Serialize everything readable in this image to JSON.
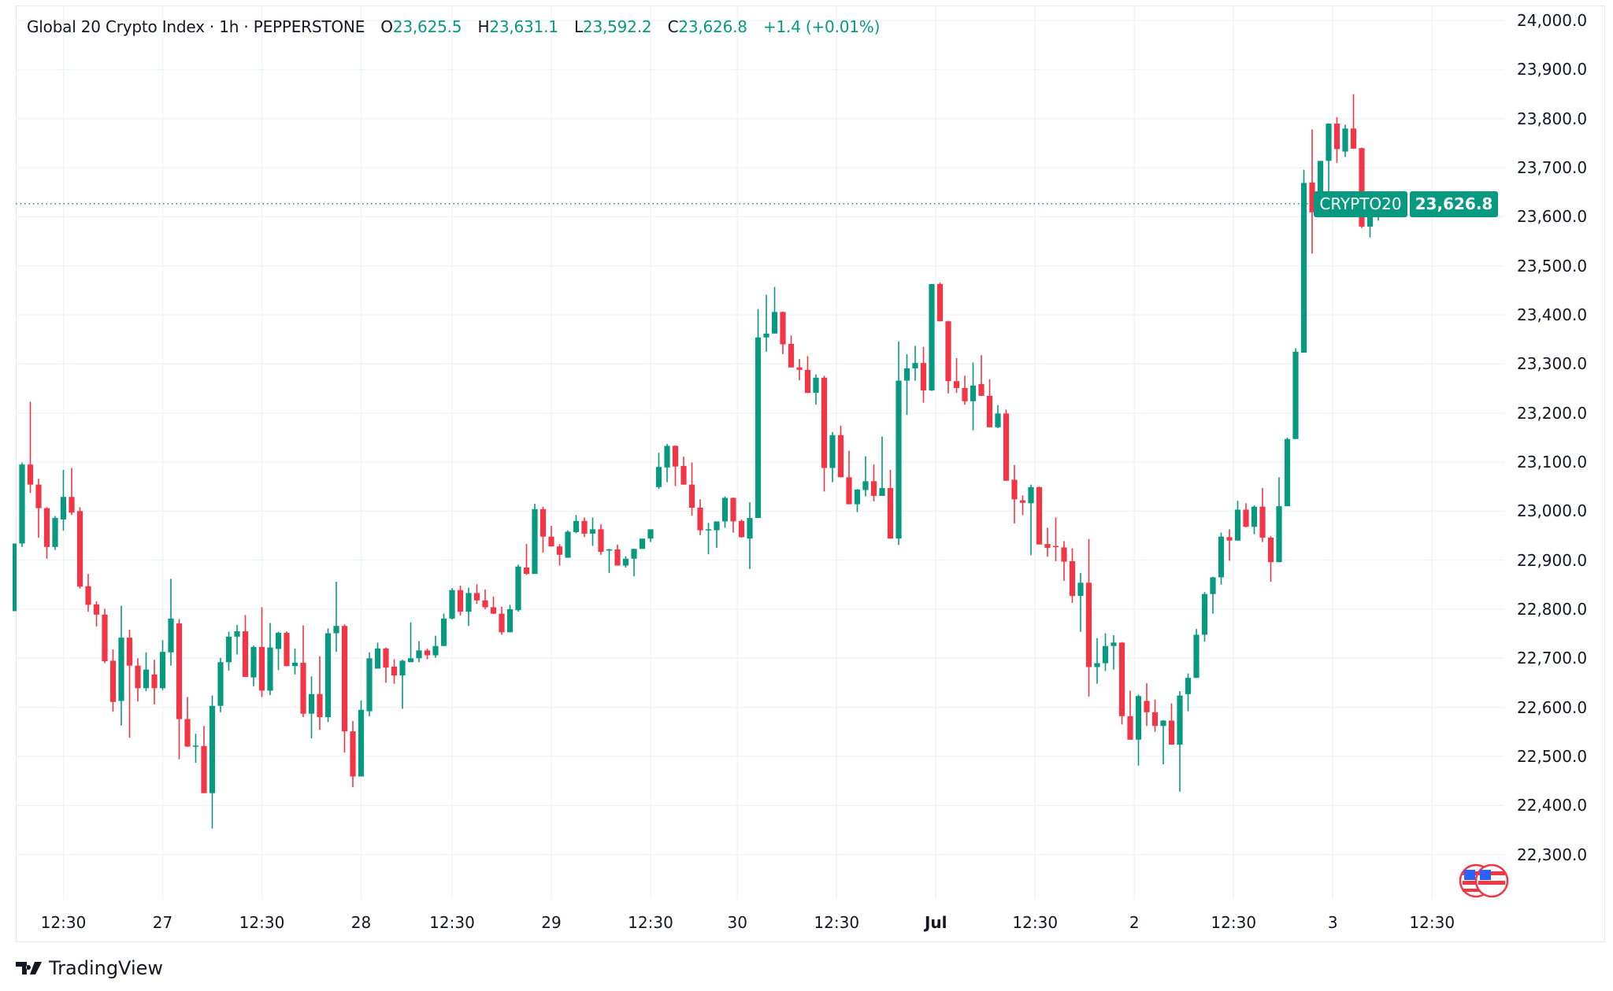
{
  "header": {
    "symbol": "Global 20 Crypto Index · 1h · PEPPERSTONE",
    "open_label": "O",
    "open": "23,625.5",
    "high_label": "H",
    "high": "23,631.1",
    "low_label": "L",
    "low": "23,592.2",
    "close_label": "C",
    "close": "23,626.8",
    "change": "+1.4 (+0.01%)"
  },
  "price_tag": {
    "name": "CRYPTO20",
    "price": "23,626.8"
  },
  "branding": {
    "name": "TradingView"
  },
  "colors": {
    "up": "#089981",
    "down": "#f23645",
    "grid": "#f0f3fa",
    "price_line": "#089981"
  },
  "icons": {
    "events": "us-flag-events-icon",
    "logo": "tradingview-logo-icon"
  },
  "chart_data": {
    "type": "candlestick",
    "title": "Global 20 Crypto Index · 1h · PEPPERSTONE",
    "interval": "1h",
    "ylim": [
      22200,
      24050
    ],
    "grid": true,
    "y_ticks": [
      "24,000.0",
      "23,900.0",
      "23,800.0",
      "23,700.0",
      "23,600.0",
      "23,500.0",
      "23,400.0",
      "23,300.0",
      "23,200.0",
      "23,100.0",
      "23,000.0",
      "22,900.0",
      "22,800.0",
      "22,700.0",
      "22,600.0",
      "22,500.0",
      "22,400.0",
      "22,300.0"
    ],
    "y_tick_values": [
      24000,
      23900,
      23800,
      23700,
      23600,
      23500,
      23400,
      23300,
      23200,
      23100,
      23000,
      22900,
      22800,
      22700,
      22600,
      22500,
      22400,
      22300
    ],
    "x_ticks": [
      {
        "label": "12:30",
        "candle": 6
      },
      {
        "label": "27",
        "candle": 18
      },
      {
        "label": "12:30",
        "candle": 30
      },
      {
        "label": "28",
        "candle": 42
      },
      {
        "label": "12:30",
        "candle": 53
      },
      {
        "label": "29",
        "candle": 65
      },
      {
        "label": "12:30",
        "candle": 77
      },
      {
        "label": "30",
        "candle": 87.5
      },
      {
        "label": "12:30",
        "candle": 99.5
      },
      {
        "label": "Jul",
        "candle": 111.5,
        "bold": true
      },
      {
        "label": "12:30",
        "candle": 123.5
      },
      {
        "label": "2",
        "candle": 135.5
      },
      {
        "label": "12:30",
        "candle": 147.5
      },
      {
        "label": "3",
        "candle": 159.5
      },
      {
        "label": "12:30",
        "candle": 171.5
      }
    ],
    "last_price": 23626.8,
    "ohlc": [
      [
        22796,
        22934,
        22796,
        22934
      ],
      [
        22934,
        23099,
        22927,
        23095
      ],
      [
        23095,
        23223,
        23037,
        23054
      ],
      [
        23054,
        23066,
        22946,
        23006
      ],
      [
        23006,
        23008,
        22903,
        22927
      ],
      [
        22927,
        22990,
        22921,
        22986
      ],
      [
        22983,
        23084,
        22960,
        23029
      ],
      [
        23029,
        23088,
        22992,
        22997
      ],
      [
        23000,
        23008,
        22842,
        22846
      ],
      [
        22847,
        22872,
        22795,
        22809
      ],
      [
        22810,
        22816,
        22765,
        22789
      ],
      [
        22789,
        22801,
        22690,
        22694
      ],
      [
        22695,
        22718,
        22591,
        22611
      ],
      [
        22613,
        22807,
        22563,
        22742
      ],
      [
        22742,
        22758,
        22538,
        22685
      ],
      [
        22685,
        22700,
        22612,
        22639
      ],
      [
        22639,
        22712,
        22633,
        22677
      ],
      [
        22667,
        22697,
        22606,
        22639
      ],
      [
        22639,
        22737,
        22635,
        22713
      ],
      [
        22712,
        22862,
        22685,
        22781
      ],
      [
        22771,
        22780,
        22494,
        22576
      ],
      [
        22576,
        22621,
        22519,
        22520
      ],
      [
        22520,
        22546,
        22487,
        22522
      ],
      [
        22521,
        22562,
        22425,
        22425
      ],
      [
        22425,
        22624,
        22353,
        22603
      ],
      [
        22603,
        22701,
        22590,
        22692
      ],
      [
        22692,
        22754,
        22675,
        22744
      ],
      [
        22744,
        22768,
        22708,
        22755
      ],
      [
        22755,
        22788,
        22662,
        22662
      ],
      [
        22661,
        22726,
        22643,
        22723
      ],
      [
        22723,
        22804,
        22621,
        22634
      ],
      [
        22634,
        22772,
        22625,
        22722
      ],
      [
        22719,
        22754,
        22676,
        22752
      ],
      [
        22752,
        22755,
        22684,
        22684
      ],
      [
        22684,
        22720,
        22667,
        22691
      ],
      [
        22691,
        22767,
        22580,
        22587
      ],
      [
        22587,
        22663,
        22537,
        22627
      ],
      [
        22627,
        22704,
        22554,
        22580
      ],
      [
        22580,
        22761,
        22570,
        22751
      ],
      [
        22751,
        22856,
        22713,
        22766
      ],
      [
        22766,
        22769,
        22508,
        22551
      ],
      [
        22551,
        22572,
        22437,
        22459
      ],
      [
        22459,
        22614,
        22459,
        22595
      ],
      [
        22592,
        22712,
        22582,
        22700
      ],
      [
        22679,
        22732,
        22679,
        22720
      ],
      [
        22720,
        22722,
        22650,
        22681
      ],
      [
        22683,
        22698,
        22648,
        22665
      ],
      [
        22665,
        22697,
        22597,
        22695
      ],
      [
        22692,
        22773,
        22692,
        22700
      ],
      [
        22700,
        22735,
        22692,
        22716
      ],
      [
        22716,
        22720,
        22698,
        22706
      ],
      [
        22706,
        22746,
        22701,
        22725
      ],
      [
        22725,
        22791,
        22725,
        22781
      ],
      [
        22781,
        22843,
        22779,
        22839
      ],
      [
        22839,
        22848,
        22787,
        22795
      ],
      [
        22795,
        22844,
        22766,
        22833
      ],
      [
        22833,
        22851,
        22811,
        22818
      ],
      [
        22818,
        22840,
        22800,
        22804
      ],
      [
        22804,
        22826,
        22790,
        22791
      ],
      [
        22791,
        22805,
        22748,
        22753
      ],
      [
        22753,
        22809,
        22753,
        22800
      ],
      [
        22798,
        22891,
        22795,
        22887
      ],
      [
        22885,
        22933,
        22870,
        22872
      ],
      [
        22872,
        23015,
        22872,
        23004
      ],
      [
        23004,
        23009,
        22915,
        22948
      ],
      [
        22948,
        22970,
        22928,
        22928
      ],
      [
        22928,
        22933,
        22889,
        22911
      ],
      [
        22905,
        22961,
        22905,
        22958
      ],
      [
        22957,
        22992,
        22955,
        22980
      ],
      [
        22980,
        22987,
        22947,
        22954
      ],
      [
        22954,
        22987,
        22929,
        22963
      ],
      [
        22963,
        22973,
        22911,
        22917
      ],
      [
        22920,
        22923,
        22874,
        22922
      ],
      [
        22922,
        22932,
        22889,
        22889
      ],
      [
        22889,
        22908,
        22885,
        22903
      ],
      [
        22903,
        22923,
        22867,
        22923
      ],
      [
        22923,
        22944,
        22923,
        22944
      ],
      [
        22944,
        22963,
        22937,
        22963
      ],
      [
        23049,
        23119,
        23045,
        23090
      ],
      [
        23089,
        23137,
        23059,
        23133
      ],
      [
        23133,
        23134,
        23051,
        23091
      ],
      [
        23092,
        23111,
        23054,
        23054
      ],
      [
        23054,
        23099,
        22991,
        23007
      ],
      [
        23007,
        23024,
        22951,
        22961
      ],
      [
        22962,
        22976,
        22912,
        22963
      ],
      [
        22961,
        22979,
        22925,
        22979
      ],
      [
        22979,
        23030,
        22966,
        23027
      ],
      [
        23027,
        23028,
        22956,
        22979
      ],
      [
        22980,
        22983,
        22946,
        22947
      ],
      [
        22944,
        23018,
        22882,
        22986
      ],
      [
        22986,
        23412,
        22986,
        23354
      ],
      [
        23354,
        23441,
        23325,
        23362
      ],
      [
        23362,
        23457,
        23362,
        23406
      ],
      [
        23406,
        23407,
        23320,
        23340
      ],
      [
        23341,
        23358,
        23293,
        23293
      ],
      [
        23293,
        23310,
        23267,
        23288
      ],
      [
        23288,
        23316,
        23241,
        23241
      ],
      [
        23241,
        23279,
        23217,
        23272
      ],
      [
        23272,
        23276,
        23040,
        23088
      ],
      [
        23088,
        23161,
        23059,
        23155
      ],
      [
        23155,
        23174,
        23069,
        23069
      ],
      [
        23069,
        23123,
        23014,
        23014
      ],
      [
        23014,
        23045,
        22998,
        23044
      ],
      [
        23043,
        23112,
        23030,
        23061
      ],
      [
        23061,
        23095,
        23020,
        23031
      ],
      [
        23031,
        23152,
        23031,
        23047
      ],
      [
        23047,
        23084,
        22944,
        22944
      ],
      [
        22944,
        23346,
        22931,
        23266
      ],
      [
        23266,
        23320,
        23196,
        23291
      ],
      [
        23291,
        23337,
        23266,
        23302
      ],
      [
        23302,
        23335,
        23221,
        23246
      ],
      [
        23246,
        23463,
        23245,
        23463
      ],
      [
        23463,
        23466,
        23387,
        23387
      ],
      [
        23387,
        23388,
        23240,
        23265
      ],
      [
        23265,
        23312,
        23241,
        23251
      ],
      [
        23251,
        23276,
        23217,
        23224
      ],
      [
        23224,
        23303,
        23165,
        23256
      ],
      [
        23259,
        23318,
        23235,
        23235
      ],
      [
        23235,
        23269,
        23171,
        23171
      ],
      [
        23171,
        23216,
        23169,
        23199
      ],
      [
        23199,
        23207,
        23062,
        23062
      ],
      [
        23064,
        23094,
        22975,
        23024
      ],
      [
        23022,
        23032,
        22992,
        23017
      ],
      [
        23016,
        23054,
        22910,
        23049
      ],
      [
        23049,
        23050,
        22932,
        22932
      ],
      [
        22933,
        22966,
        22907,
        22925
      ],
      [
        22929,
        22987,
        22898,
        22927
      ],
      [
        22926,
        22939,
        22858,
        22897
      ],
      [
        22898,
        22924,
        22813,
        22827
      ],
      [
        22827,
        22874,
        22754,
        22854
      ],
      [
        22854,
        22943,
        22622,
        22682
      ],
      [
        22682,
        22741,
        22648,
        22690
      ],
      [
        22690,
        22751,
        22674,
        22725
      ],
      [
        22725,
        22747,
        22677,
        22732
      ],
      [
        22732,
        22733,
        22565,
        22582
      ],
      [
        22582,
        22634,
        22534,
        22534
      ],
      [
        22534,
        22626,
        22481,
        22623
      ],
      [
        22613,
        22649,
        22562,
        22590
      ],
      [
        22590,
        22616,
        22550,
        22562
      ],
      [
        22562,
        22574,
        22484,
        22573
      ],
      [
        22573,
        22608,
        22524,
        22524
      ],
      [
        22524,
        22633,
        22428,
        22624
      ],
      [
        22627,
        22669,
        22592,
        22660
      ],
      [
        22660,
        22760,
        22660,
        22748
      ],
      [
        22748,
        22835,
        22734,
        22831
      ],
      [
        22831,
        22866,
        22791,
        22865
      ],
      [
        22865,
        22956,
        22850,
        22948
      ],
      [
        22947,
        22963,
        22899,
        22940
      ],
      [
        22940,
        23021,
        22940,
        23003
      ],
      [
        23003,
        23016,
        22967,
        22968
      ],
      [
        22968,
        23012,
        22953,
        23009
      ],
      [
        23009,
        23047,
        22937,
        22946
      ],
      [
        22946,
        22949,
        22856,
        22896
      ],
      [
        22896,
        23069,
        22896,
        23010
      ],
      [
        23010,
        23150,
        23010,
        23147
      ],
      [
        23147,
        23332,
        23147,
        23325
      ],
      [
        23323,
        23696,
        23323,
        23669
      ],
      [
        23670,
        23778,
        23525,
        23609
      ],
      [
        23609,
        23714,
        23608,
        23714
      ],
      [
        23714,
        23790,
        23650,
        23790
      ],
      [
        23790,
        23803,
        23710,
        23738
      ],
      [
        23733,
        23788,
        23722,
        23780
      ],
      [
        23780,
        23850,
        23739,
        23739
      ],
      [
        23740,
        23741,
        23577,
        23580
      ],
      [
        23580,
        23649,
        23558,
        23624
      ],
      [
        23625.5,
        23631.1,
        23592.2,
        23626.8
      ]
    ]
  }
}
